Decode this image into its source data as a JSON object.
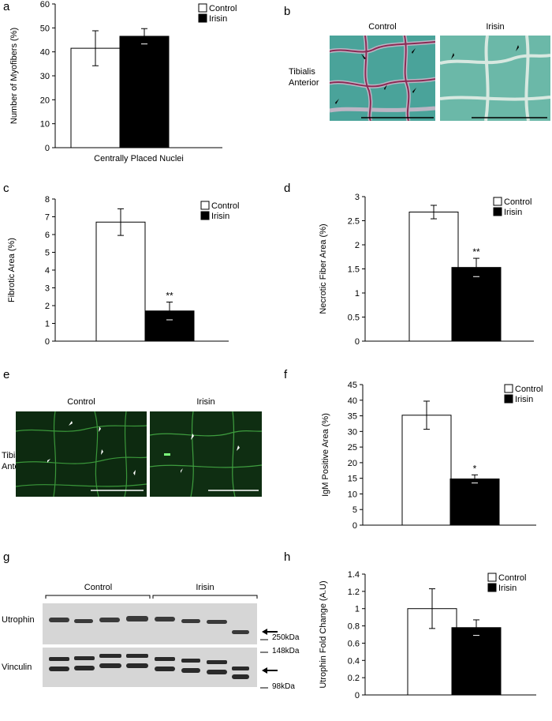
{
  "letters": {
    "a": "a",
    "b": "b",
    "c": "c",
    "d": "d",
    "e": "e",
    "f": "f",
    "g": "g",
    "h": "h"
  },
  "panel_b": {
    "tissue": "Tibialis\nAnterior",
    "control": "Control",
    "irisin": "Irisin"
  },
  "panel_e": {
    "tissue": "Tibialis\nAnterior",
    "control": "Control",
    "irisin": "Irisin"
  },
  "panel_g": {
    "control": "Control",
    "irisin": "Irisin",
    "utrophin": "Utrophin",
    "vinculin": "Vinculin",
    "m250": "250kDa",
    "m148": "148kDa",
    "m98": "98kDa"
  },
  "chart_data": [
    {
      "id": "a",
      "type": "bar",
      "categories": [
        "Control",
        "Irisin"
      ],
      "values": [
        41.5,
        46.5
      ],
      "errors": [
        7.3,
        3.2
      ],
      "ylabel": "Number of Myofibers (%)",
      "xlabel": "Centrally Placed Nuclei",
      "ylim": [
        0,
        60
      ],
      "yticks": [
        "0",
        "10",
        "20",
        "30",
        "40",
        "50",
        "60"
      ],
      "legend": [
        "Control",
        "Irisin"
      ],
      "stars": [
        "",
        ""
      ]
    },
    {
      "id": "c",
      "type": "bar",
      "categories": [
        "Control",
        "Irisin"
      ],
      "values": [
        6.7,
        1.7
      ],
      "errors": [
        0.75,
        0.5
      ],
      "ylabel": "Fibrotic Area (%)",
      "xlabel": "",
      "ylim": [
        0,
        8
      ],
      "yticks": [
        "0",
        "1",
        "2",
        "3",
        "4",
        "5",
        "6",
        "7",
        "8"
      ],
      "legend": [
        "Control",
        "Irisin"
      ],
      "stars": [
        "",
        "**"
      ]
    },
    {
      "id": "d",
      "type": "bar",
      "categories": [
        "Control",
        "Irisin"
      ],
      "values": [
        2.68,
        1.53
      ],
      "errors": [
        0.14,
        0.19
      ],
      "ylabel": "Necrotic Fiber Area (%)",
      "xlabel": "",
      "ylim": [
        0,
        3
      ],
      "yticks": [
        "0",
        "0.5",
        "1",
        "1.5",
        "2",
        "2.5",
        "3"
      ],
      "legend": [
        "Control",
        "Irisin"
      ],
      "stars": [
        "",
        "**"
      ]
    },
    {
      "id": "f",
      "type": "bar",
      "categories": [
        "Control",
        "Irisin"
      ],
      "values": [
        35.2,
        14.8
      ],
      "errors": [
        4.5,
        1.3
      ],
      "ylabel": "IgM Positive Area (%)",
      "xlabel": "",
      "ylim": [
        0,
        45
      ],
      "yticks": [
        "0",
        "5",
        "10",
        "15",
        "20",
        "25",
        "30",
        "35",
        "40",
        "45"
      ],
      "legend": [
        "Control",
        "Irisin"
      ],
      "stars": [
        "",
        "*"
      ]
    },
    {
      "id": "h",
      "type": "bar",
      "categories": [
        "Control",
        "Irisin"
      ],
      "values": [
        1.0,
        0.78
      ],
      "errors": [
        0.23,
        0.09
      ],
      "ylabel": "Utrophin Fold Change (A.U)",
      "xlabel": "",
      "ylim": [
        0,
        1.4
      ],
      "yticks": [
        "0",
        "0.2",
        "0.4",
        "0.6",
        "0.8",
        "1",
        "1.2",
        "1.4"
      ],
      "legend": [
        "Control",
        "Irisin"
      ],
      "stars": [
        "",
        ""
      ]
    }
  ],
  "colors": {
    "control": "#ffffff",
    "irisin": "#000000",
    "stain_b": "#4aa39a",
    "stain_b2": "#8fc8b8",
    "stain_e": "#0d2a10"
  }
}
